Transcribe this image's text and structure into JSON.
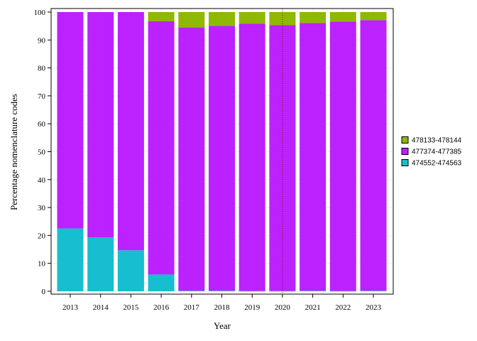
{
  "chart_data": {
    "type": "bar",
    "stacked": true,
    "title": "",
    "xlabel": "Year",
    "ylabel": "Percentage nomenclature codes",
    "ylim": [
      0,
      100
    ],
    "yticks": [
      0,
      10,
      20,
      30,
      40,
      50,
      60,
      70,
      80,
      90,
      100
    ],
    "categories": [
      "2013",
      "2014",
      "2015",
      "2016",
      "2017",
      "2018",
      "2019",
      "2020",
      "2021",
      "2022",
      "2023"
    ],
    "series": [
      {
        "name": "474552-474563",
        "color": "#17becf",
        "values": [
          22.5,
          19.3,
          14.7,
          6.0,
          0.2,
          0.2,
          0.1,
          0.1,
          0.2,
          0.1,
          0.2
        ]
      },
      {
        "name": "477374-477385",
        "color": "#bb22ff",
        "values": [
          77.5,
          80.7,
          85.3,
          90.7,
          94.3,
          94.9,
          95.7,
          95.2,
          95.9,
          96.5,
          96.9
        ]
      },
      {
        "name": "478133-478144",
        "color": "#8fb800",
        "values": [
          0,
          0,
          0,
          3.3,
          5.5,
          4.9,
          4.2,
          4.7,
          3.9,
          3.4,
          2.9
        ]
      }
    ],
    "legend_order": [
      "478133-478144",
      "477374-477385",
      "474552-474563"
    ],
    "legend_position": "right",
    "reference_line": {
      "category": "2020",
      "color": "#8b0000",
      "style": "dotted"
    },
    "grid": true
  }
}
